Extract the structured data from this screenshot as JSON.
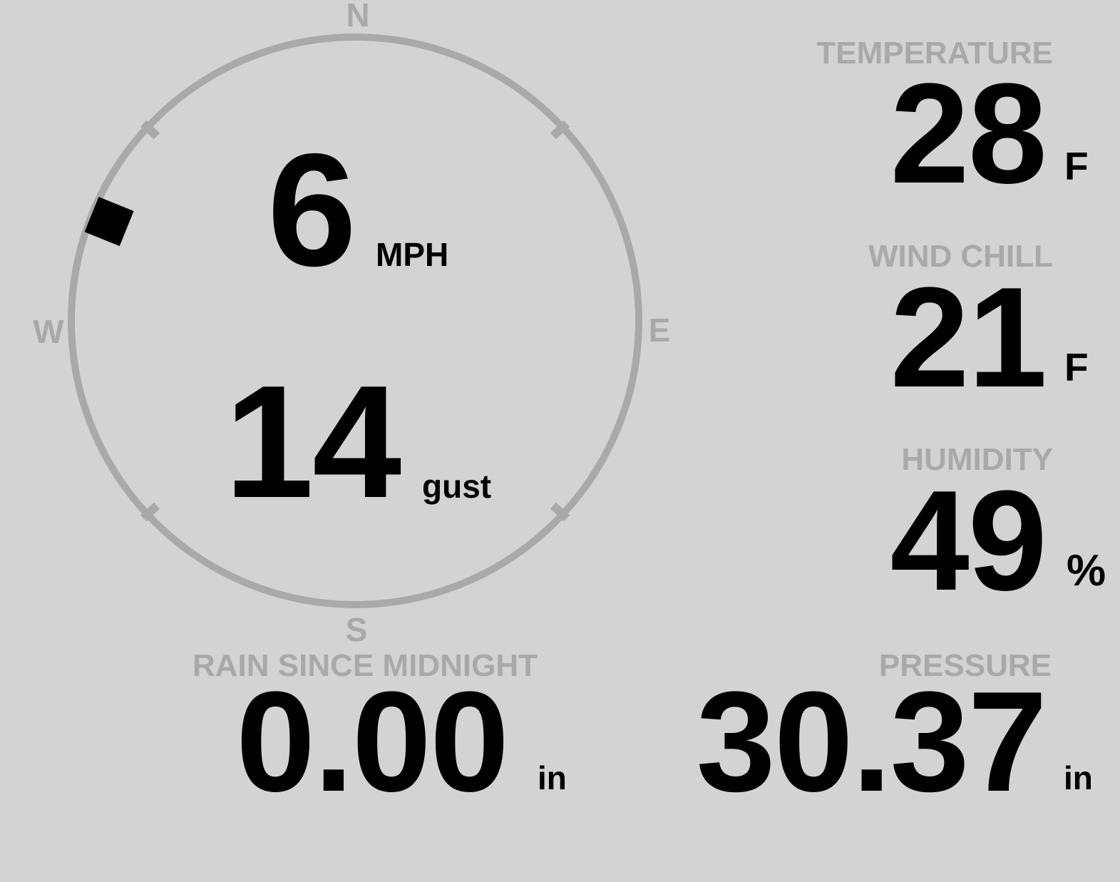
{
  "theme": {
    "background": "#d3d3d3",
    "muted_gray": "#a9a9a9",
    "value_black": "#010101"
  },
  "compass": {
    "cardinals": {
      "north": "N",
      "east": "E",
      "south": "S",
      "west": "W"
    },
    "wind_direction_deg": 292,
    "speed": {
      "value": "6",
      "unit": "MPH"
    },
    "gust": {
      "value": "14",
      "unit": "gust"
    }
  },
  "metrics": {
    "temperature": {
      "label": "TEMPERATURE",
      "value": "28",
      "unit": "F"
    },
    "wind_chill": {
      "label": "WIND CHILL",
      "value": "21",
      "unit": "F"
    },
    "humidity": {
      "label": "HUMIDITY",
      "value": "49",
      "unit": "%"
    },
    "rain_since_midnight": {
      "label": "RAIN SINCE MIDNIGHT",
      "value": "0.00",
      "unit": "in"
    },
    "pressure": {
      "label": "PRESSURE",
      "value": "30.37",
      "unit": "in"
    }
  }
}
